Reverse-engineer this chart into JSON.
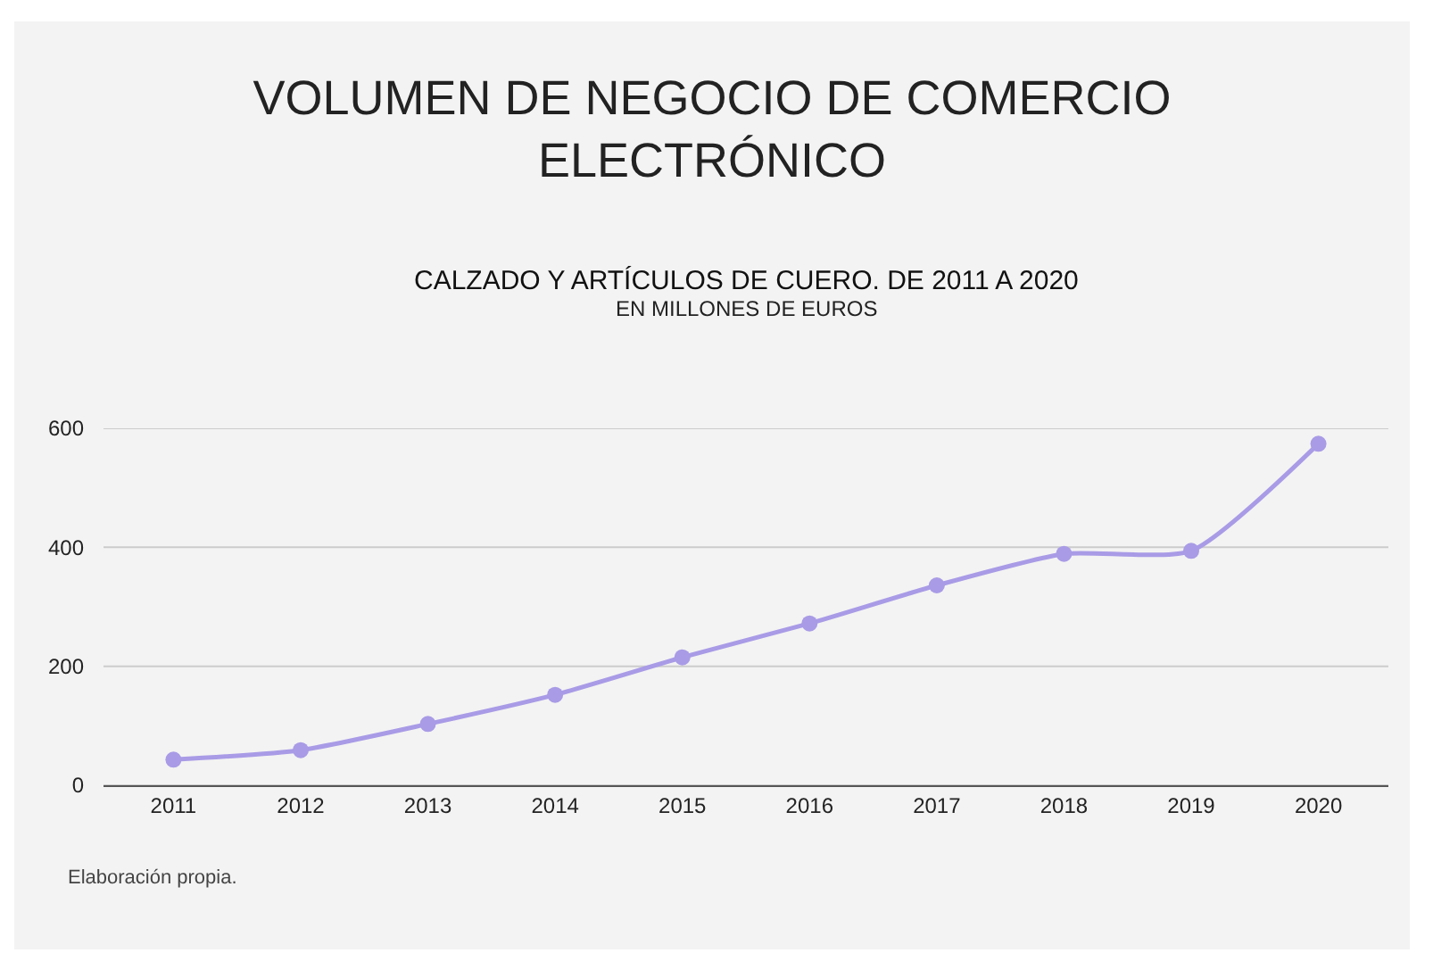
{
  "chart_data": {
    "type": "line",
    "title": "VOLUMEN DE NEGOCIO DE COMERCIO\nELECTRÓNICO",
    "subtitle": "CALZADO Y ARTÍCULOS DE CUERO. DE 2011 A 2020",
    "categories": [
      "2011",
      "2012",
      "2013",
      "2014",
      "2015",
      "2016",
      "2017",
      "2018",
      "2019",
      "2020"
    ],
    "series": [
      {
        "color": "#a99be6",
        "values": [
          43,
          59,
          103,
          152,
          215,
          272,
          336,
          389,
          394,
          574
        ]
      }
    ],
    "ylim": [
      0,
      600
    ],
    "yticks": [
      0,
      200,
      400,
      600
    ],
    "grid": "y",
    "marker": "circle",
    "line_style": "solid",
    "annotations": [
      "EN MILLONES DE EUROS",
      "Elaboración propia."
    ]
  }
}
